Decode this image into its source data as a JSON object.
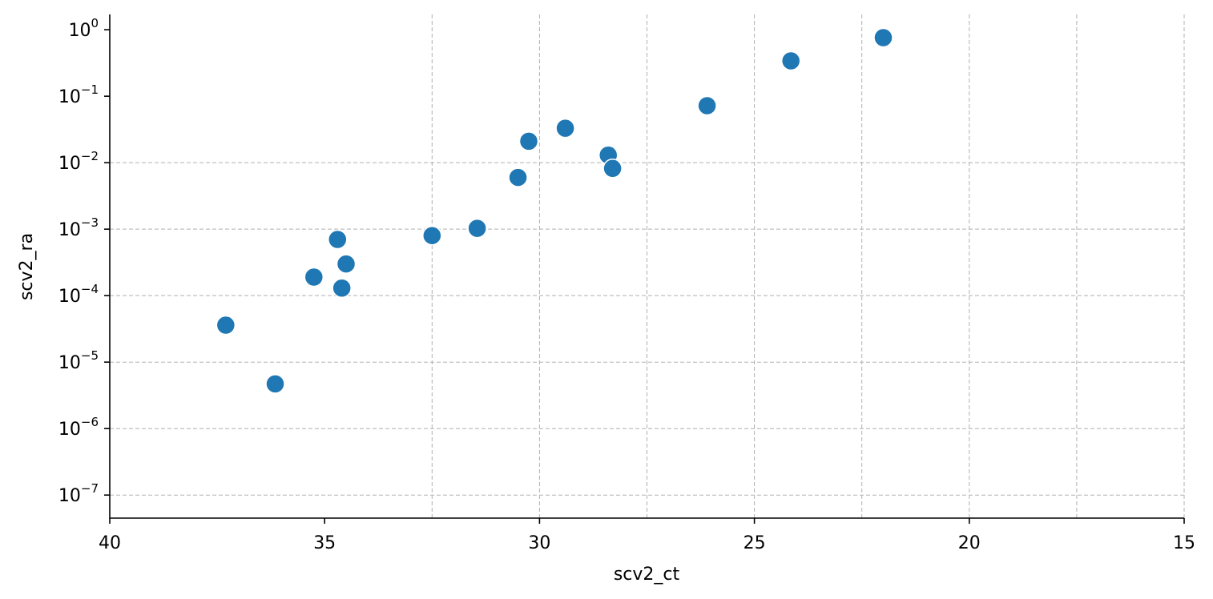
{
  "chart_data": {
    "type": "scatter",
    "title": "",
    "xlabel": "scv2_ct",
    "ylabel": "scv2_ra",
    "xlim": [
      40,
      15
    ],
    "x_inverted": true,
    "ylim": [
      4.5e-08,
      1.7
    ],
    "y_scale": "log",
    "x_ticks": [
      40,
      35,
      30,
      25,
      20,
      15
    ],
    "x_tick_labels": [
      "40",
      "35",
      "30",
      "25",
      "20",
      "15"
    ],
    "x_grid": [
      32.5,
      30,
      27.5,
      25,
      22.5,
      20,
      17.5,
      15
    ],
    "y_ticks": [
      1,
      0.1,
      0.01,
      0.001,
      0.0001,
      1e-05,
      1e-06,
      1e-07
    ],
    "y_tick_labels": [
      {
        "base": "10",
        "exp": "0"
      },
      {
        "base": "10",
        "exp": "−1"
      },
      {
        "base": "10",
        "exp": "−2"
      },
      {
        "base": "10",
        "exp": "−3"
      },
      {
        "base": "10",
        "exp": "−4"
      },
      {
        "base": "10",
        "exp": "−5"
      },
      {
        "base": "10",
        "exp": "−6"
      },
      {
        "base": "10",
        "exp": "−7"
      }
    ],
    "y_grid": [
      0.01,
      0.001,
      0.0001,
      1e-05,
      1e-06,
      1e-07
    ],
    "grid": true,
    "marker_color": "#1f77b4",
    "points": [
      {
        "x": 37.3,
        "y": 3.6e-05
      },
      {
        "x": 36.15,
        "y": 4.7e-06
      },
      {
        "x": 35.25,
        "y": 0.00019
      },
      {
        "x": 34.7,
        "y": 0.0007
      },
      {
        "x": 34.6,
        "y": 0.00013
      },
      {
        "x": 34.5,
        "y": 0.0003
      },
      {
        "x": 32.5,
        "y": 0.0008
      },
      {
        "x": 31.45,
        "y": 0.00103
      },
      {
        "x": 30.5,
        "y": 0.006
      },
      {
        "x": 30.25,
        "y": 0.021
      },
      {
        "x": 29.4,
        "y": 0.033
      },
      {
        "x": 28.4,
        "y": 0.013
      },
      {
        "x": 28.3,
        "y": 0.0082
      },
      {
        "x": 26.1,
        "y": 0.072
      },
      {
        "x": 24.15,
        "y": 0.34
      },
      {
        "x": 22.0,
        "y": 0.76
      }
    ]
  }
}
